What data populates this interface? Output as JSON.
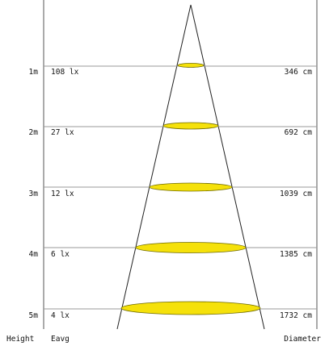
{
  "footer": {
    "height_label": "Height",
    "eavg_label": "Eavg",
    "diameter_label": "Diameter"
  },
  "rows": [
    {
      "height": "1m",
      "eavg": "108 lx",
      "diameter": "346 cm"
    },
    {
      "height": "2m",
      "eavg": "27 lx",
      "diameter": "692 cm"
    },
    {
      "height": "3m",
      "eavg": "12 lx",
      "diameter": "1039 cm"
    },
    {
      "height": "4m",
      "eavg": "6 lx",
      "diameter": "1385 cm"
    },
    {
      "height": "5m",
      "eavg": "4 lx",
      "diameter": "1732 cm"
    }
  ],
  "colors": {
    "spot_fill": "#f5e10a",
    "grid_line": "#9a9a9a",
    "text": "#111111"
  }
}
